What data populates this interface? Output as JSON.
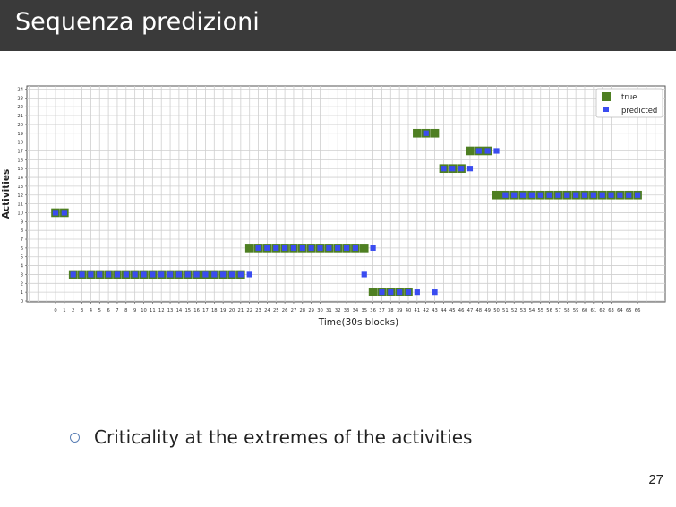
{
  "slide": {
    "title": "Sequenza predizioni",
    "bullet": "Criticality at the extremes of the activities",
    "page_number": "27"
  },
  "colors": {
    "title_bar": "#3a3a3a",
    "true": "#4e7f22",
    "predicted": "#3a4cf0",
    "grid": "#cfcfcf"
  },
  "chart_data": {
    "type": "scatter",
    "xlabel": "Time(30s blocks)",
    "ylabel": "Activities",
    "xlim": [
      0,
      66
    ],
    "ylim": [
      0,
      24
    ],
    "x_ticks": [
      0,
      1,
      2,
      3,
      4,
      5,
      6,
      7,
      8,
      9,
      10,
      11,
      12,
      13,
      14,
      15,
      16,
      17,
      18,
      19,
      20,
      21,
      22,
      23,
      24,
      25,
      26,
      27,
      28,
      29,
      30,
      31,
      32,
      33,
      34,
      35,
      36,
      37,
      38,
      39,
      40,
      41,
      42,
      43,
      44,
      45,
      46,
      47,
      48,
      49,
      50,
      51,
      52,
      53,
      54,
      55,
      56,
      57,
      58,
      59,
      60,
      61,
      62,
      63,
      64,
      65,
      66
    ],
    "y_ticks": [
      0,
      1,
      2,
      3,
      4,
      5,
      6,
      7,
      8,
      9,
      10,
      11,
      12,
      13,
      14,
      15,
      16,
      17,
      18,
      19,
      20,
      21,
      22,
      23,
      24
    ],
    "grid": true,
    "legend_position": "top-right",
    "series": [
      {
        "name": "true",
        "marker": "square-large",
        "color": "#4e7f22",
        "points": [
          [
            0,
            10
          ],
          [
            1,
            10
          ],
          [
            2,
            3
          ],
          [
            3,
            3
          ],
          [
            4,
            3
          ],
          [
            5,
            3
          ],
          [
            6,
            3
          ],
          [
            7,
            3
          ],
          [
            8,
            3
          ],
          [
            9,
            3
          ],
          [
            10,
            3
          ],
          [
            11,
            3
          ],
          [
            12,
            3
          ],
          [
            13,
            3
          ],
          [
            14,
            3
          ],
          [
            15,
            3
          ],
          [
            16,
            3
          ],
          [
            17,
            3
          ],
          [
            18,
            3
          ],
          [
            19,
            3
          ],
          [
            20,
            3
          ],
          [
            21,
            3
          ],
          [
            22,
            6
          ],
          [
            23,
            6
          ],
          [
            24,
            6
          ],
          [
            25,
            6
          ],
          [
            26,
            6
          ],
          [
            27,
            6
          ],
          [
            28,
            6
          ],
          [
            29,
            6
          ],
          [
            30,
            6
          ],
          [
            31,
            6
          ],
          [
            32,
            6
          ],
          [
            33,
            6
          ],
          [
            34,
            6
          ],
          [
            35,
            6
          ],
          [
            36,
            1
          ],
          [
            37,
            1
          ],
          [
            38,
            1
          ],
          [
            39,
            1
          ],
          [
            40,
            1
          ],
          [
            41,
            19
          ],
          [
            42,
            19
          ],
          [
            43,
            19
          ],
          [
            44,
            15
          ],
          [
            45,
            15
          ],
          [
            46,
            15
          ],
          [
            47,
            17
          ],
          [
            48,
            17
          ],
          [
            49,
            17
          ],
          [
            50,
            12
          ],
          [
            51,
            12
          ],
          [
            52,
            12
          ],
          [
            53,
            12
          ],
          [
            54,
            12
          ],
          [
            55,
            12
          ],
          [
            56,
            12
          ],
          [
            57,
            12
          ],
          [
            58,
            12
          ],
          [
            59,
            12
          ],
          [
            60,
            12
          ],
          [
            61,
            12
          ],
          [
            62,
            12
          ],
          [
            63,
            12
          ],
          [
            64,
            12
          ],
          [
            65,
            12
          ],
          [
            66,
            12
          ]
        ]
      },
      {
        "name": "predicted",
        "marker": "square-small",
        "color": "#3a4cf0",
        "points": [
          [
            0,
            10
          ],
          [
            1,
            10
          ],
          [
            2,
            3
          ],
          [
            3,
            3
          ],
          [
            4,
            3
          ],
          [
            5,
            3
          ],
          [
            6,
            3
          ],
          [
            7,
            3
          ],
          [
            8,
            3
          ],
          [
            9,
            3
          ],
          [
            10,
            3
          ],
          [
            11,
            3
          ],
          [
            12,
            3
          ],
          [
            13,
            3
          ],
          [
            14,
            3
          ],
          [
            15,
            3
          ],
          [
            16,
            3
          ],
          [
            17,
            3
          ],
          [
            18,
            3
          ],
          [
            19,
            3
          ],
          [
            20,
            3
          ],
          [
            21,
            3
          ],
          [
            22,
            3
          ],
          [
            23,
            6
          ],
          [
            24,
            6
          ],
          [
            25,
            6
          ],
          [
            26,
            6
          ],
          [
            27,
            6
          ],
          [
            28,
            6
          ],
          [
            29,
            6
          ],
          [
            30,
            6
          ],
          [
            31,
            6
          ],
          [
            32,
            6
          ],
          [
            33,
            6
          ],
          [
            34,
            6
          ],
          [
            35,
            3
          ],
          [
            36,
            6
          ],
          [
            37,
            1
          ],
          [
            38,
            1
          ],
          [
            39,
            1
          ],
          [
            40,
            1
          ],
          [
            41,
            1
          ],
          [
            43,
            1
          ],
          [
            42,
            19
          ],
          [
            44,
            15
          ],
          [
            45,
            15
          ],
          [
            46,
            15
          ],
          [
            47,
            15
          ],
          [
            48,
            17
          ],
          [
            49,
            17
          ],
          [
            50,
            17
          ],
          [
            51,
            12
          ],
          [
            52,
            12
          ],
          [
            53,
            12
          ],
          [
            54,
            12
          ],
          [
            55,
            12
          ],
          [
            56,
            12
          ],
          [
            57,
            12
          ],
          [
            58,
            12
          ],
          [
            59,
            12
          ],
          [
            60,
            12
          ],
          [
            61,
            12
          ],
          [
            62,
            12
          ],
          [
            63,
            12
          ],
          [
            64,
            12
          ],
          [
            65,
            12
          ],
          [
            66,
            12
          ]
        ]
      }
    ]
  }
}
